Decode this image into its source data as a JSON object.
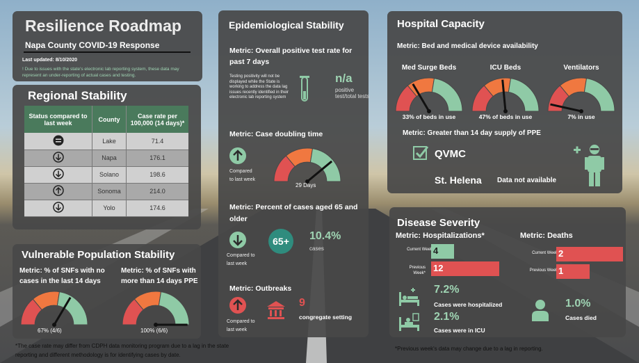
{
  "title": {
    "main": "Resilience Roadmap",
    "subtitle": "Napa County COVID-19 Response",
    "last_updated": "Last updated: 8/10/2020",
    "note": "! Due to issues with the state's electronic lab reporting system, these data may represent an under-reporting of actual cases and testing."
  },
  "regional": {
    "heading": "Regional Stability",
    "headers": [
      "Status compared to last week",
      "County",
      "Case rate per 100,000 (14 days)*"
    ],
    "rows": [
      {
        "status": "equal-icon",
        "county": "Lake",
        "rate": "71.4"
      },
      {
        "status": "arrow-down-icon",
        "county": "Napa",
        "rate": "176.1"
      },
      {
        "status": "arrow-down-icon",
        "county": "Solano",
        "rate": "198.6"
      },
      {
        "status": "arrow-up-icon",
        "county": "Sonoma",
        "rate": "214.0"
      },
      {
        "status": "arrow-down-icon",
        "county": "Yolo",
        "rate": "174.6"
      }
    ]
  },
  "vulnerable": {
    "heading": "Vulnerable Population Stability",
    "metric1": "Metric: % of SNFs with no cases in the last 14 days",
    "metric2": "Metric: % of SNFs with more than 14 days PPE",
    "gauge1_label": "67% (4/6)",
    "gauge2_label": "100% (6/6)",
    "gauge1_value": 0.67,
    "gauge2_value": 1.0
  },
  "footnote_left": "*The case rate may differ from CDPH data monitoring program due to a lag in the state reporting and different methodology is for identifying cases by date.",
  "epi": {
    "heading": "Epidemiological Stability",
    "metric_positivity": "Metric: Overall positive test rate for past 7 days",
    "positivity_note": "Testing positivity will not be displayed while the State is working to address the data lag issues recently identified in their electronic lab reporting system",
    "positivity_value": "n/a",
    "positivity_caption": "positive test/total tests",
    "metric_doubling": "Metric: Case doubling time",
    "compared_label": "Compared to last week",
    "doubling_value": "29 Days",
    "doubling_gauge": 0.78,
    "metric_aged": "Metric: Percent of  cases aged 65 and older",
    "aged_badge": "65+",
    "aged_value": "10.4%",
    "aged_caption": "cases",
    "metric_outbreaks": "Metric: Outbreaks",
    "outbreak_value": "9",
    "outbreak_caption": "congregate setting"
  },
  "hospital": {
    "heading": "Hospital Capacity",
    "metric_beds": "Metric: Bed and medical device availability",
    "gauges": [
      {
        "title": "Med Surge Beds",
        "label": "33%  of beds in use",
        "value": 0.33
      },
      {
        "title": "ICU Beds",
        "label": "47%  of beds in use",
        "value": 0.47
      },
      {
        "title": "Ventilators",
        "label": "7% in use",
        "value": 0.07
      }
    ],
    "metric_ppe": "Metric: Greater than 14 day supply of PPE",
    "ppe_facility1": "QVMC",
    "ppe_facility2": "St. Helena",
    "ppe_facility2_status": "Data not available"
  },
  "severity": {
    "heading": "Disease Severity",
    "metric_hosp": "Metric: Hospitalizations*",
    "metric_deaths": "Metric:  Deaths",
    "current_week": "Current Week",
    "previous_week": "Previous Week*",
    "previous_week_deaths": "Previous Week",
    "hosp_current": 4,
    "hosp_previous": 12,
    "deaths_current": 2,
    "deaths_previous": 1,
    "hospitalized_pct": "7.2%",
    "hospitalized_caption": "Cases were hospitalized",
    "icu_pct": "2.1%",
    "icu_caption": "Cases were in ICU",
    "died_pct": "1.0%",
    "died_caption": "Cases died"
  },
  "footnote_right": "*Previous week's data may change due to a lag in reporting.",
  "colors": {
    "green": "#8fcaa6",
    "red": "#e05252",
    "orange": "#f07840",
    "teal": "#2f8c7e",
    "dark_green": "#4a7a5c"
  }
}
